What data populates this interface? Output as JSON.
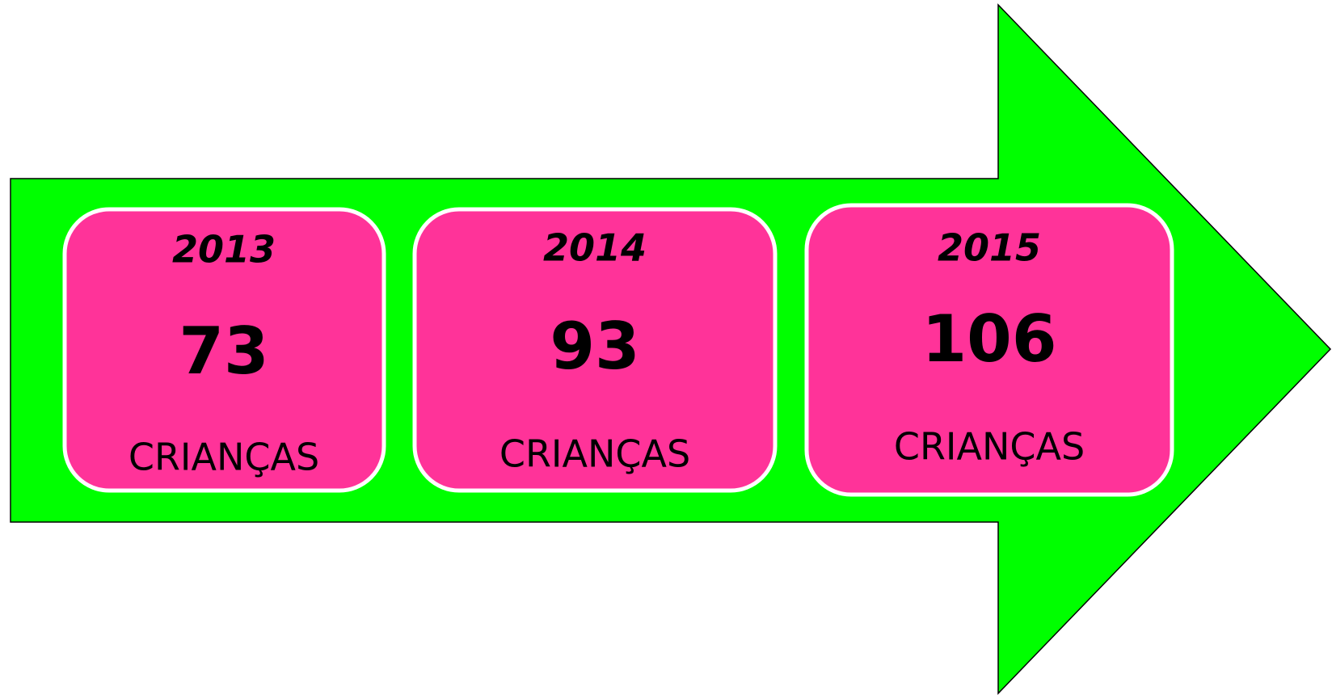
{
  "items": [
    {
      "year": 2013,
      "count": 73,
      "label": "CRIANÇAS"
    },
    {
      "year": 2014,
      "count": 93,
      "label": "CRIANÇAS"
    },
    {
      "year": 2015,
      "count": 106,
      "label": "CRIANÇAS"
    }
  ]
}
